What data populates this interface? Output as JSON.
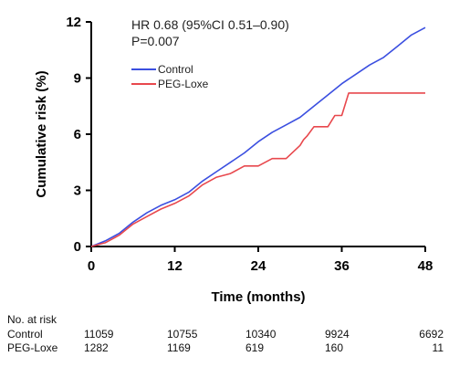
{
  "chart_data": {
    "type": "line",
    "ylabel": "Cumulative risk (%)",
    "xlabel": "Time (months)",
    "xlim": [
      0,
      48
    ],
    "ylim": [
      0,
      12
    ],
    "xticks": [
      "0",
      "12",
      "24",
      "36",
      "48"
    ],
    "yticks": [
      "0",
      "3",
      "6",
      "9",
      "12"
    ],
    "grid": false,
    "legend_position": "top-left",
    "annotations": [
      "HR 0.68 (95%CI 0.51–0.90)",
      "P=0.007"
    ],
    "series": [
      {
        "name": "Control",
        "color": "#3b4fe0",
        "x": [
          0,
          2,
          4,
          6,
          8,
          10,
          12,
          14,
          16,
          18,
          20,
          22,
          24,
          26,
          28,
          30,
          32,
          34,
          36,
          38,
          40,
          42,
          44,
          46,
          48
        ],
        "y": [
          0,
          0.3,
          0.7,
          1.3,
          1.8,
          2.2,
          2.5,
          2.9,
          3.5,
          4.0,
          4.5,
          5.0,
          5.6,
          6.1,
          6.5,
          6.9,
          7.5,
          8.1,
          8.7,
          9.2,
          9.7,
          10.1,
          10.7,
          11.3,
          11.7
        ]
      },
      {
        "name": "PEG-Loxe",
        "color": "#e8484d",
        "x": [
          0,
          2,
          4,
          6,
          8,
          10,
          12,
          14,
          16,
          18,
          20,
          22,
          24,
          26,
          28,
          30,
          30.5,
          31,
          32,
          33,
          34,
          35,
          36,
          37,
          38,
          40,
          42,
          44,
          46,
          48
        ],
        "y": [
          0,
          0.2,
          0.6,
          1.2,
          1.6,
          2.0,
          2.3,
          2.7,
          3.3,
          3.7,
          3.9,
          4.3,
          4.3,
          4.7,
          4.7,
          5.4,
          5.7,
          5.9,
          6.4,
          6.4,
          6.4,
          7.0,
          7.0,
          8.2,
          8.2,
          8.2,
          8.2,
          8.2,
          8.2,
          8.2
        ]
      }
    ]
  },
  "risk_table": {
    "title": "No. at risk",
    "rows": [
      {
        "label": "Control",
        "values": [
          "11059",
          "10755",
          "10340",
          "9924",
          "6692"
        ]
      },
      {
        "label": "PEG-Loxe",
        "values": [
          "1282",
          "1169",
          "619",
          "160",
          "11"
        ]
      }
    ]
  }
}
